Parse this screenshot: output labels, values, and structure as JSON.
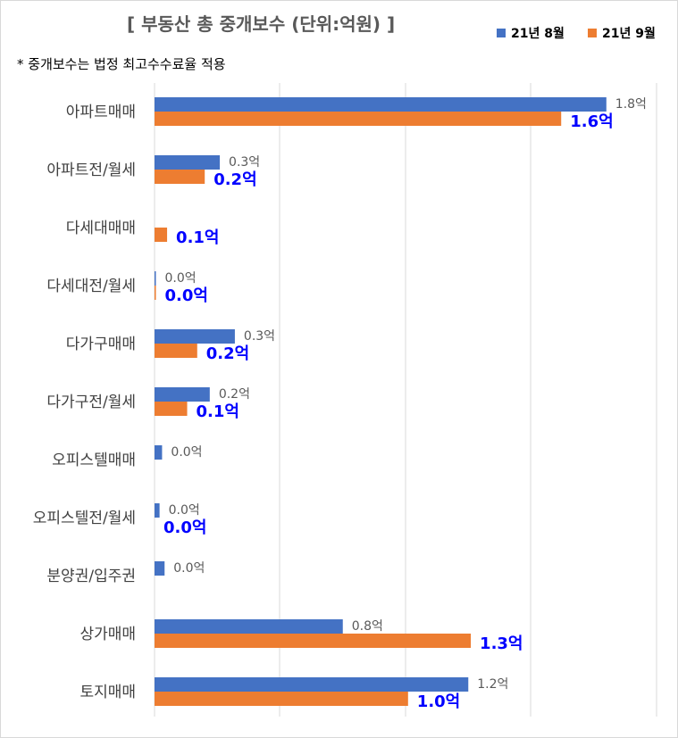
{
  "chart_data": {
    "type": "bar",
    "orientation": "horizontal",
    "title": "[ 부동산 총 중개보수 (단위:억원) ]",
    "subtitle": "* 중개보수는 법정 최고수수료율 적용",
    "categories": [
      "아파트매매",
      "아파트전/월세",
      "다세대매매",
      "다세대전/월세",
      "다가구매매",
      "다가구전/월세",
      "오피스텔매매",
      "오피스텔전/월세",
      "분양권/입주권",
      "상가매매",
      "토지매매"
    ],
    "series": [
      {
        "name": "21년 8월",
        "color": "#4472c4",
        "values": [
          1.8,
          0.26,
          null,
          0.005,
          0.32,
          0.22,
          0.03,
          0.02,
          0.04,
          0.75,
          1.25
        ],
        "labels": [
          "1.8억",
          "0.3억",
          "",
          "0.0억",
          "0.3억",
          "0.2억",
          "0.0억",
          "0.0억",
          "0.0억",
          "0.8억",
          "1.2억"
        ]
      },
      {
        "name": "21년 9월",
        "color": "#ed7d31",
        "values": [
          1.62,
          0.2,
          0.05,
          0.005,
          0.17,
          0.13,
          null,
          null,
          null,
          1.26,
          1.01
        ],
        "labels": [
          "1.6억",
          "0.2억",
          "0.1억",
          "0.0억",
          "0.2억",
          "0.1억",
          "",
          "0.0억",
          "",
          "1.3억",
          "1.0억"
        ]
      }
    ],
    "xlim": [
      0,
      2.0
    ],
    "grid": true,
    "legend_position": "top-right"
  }
}
